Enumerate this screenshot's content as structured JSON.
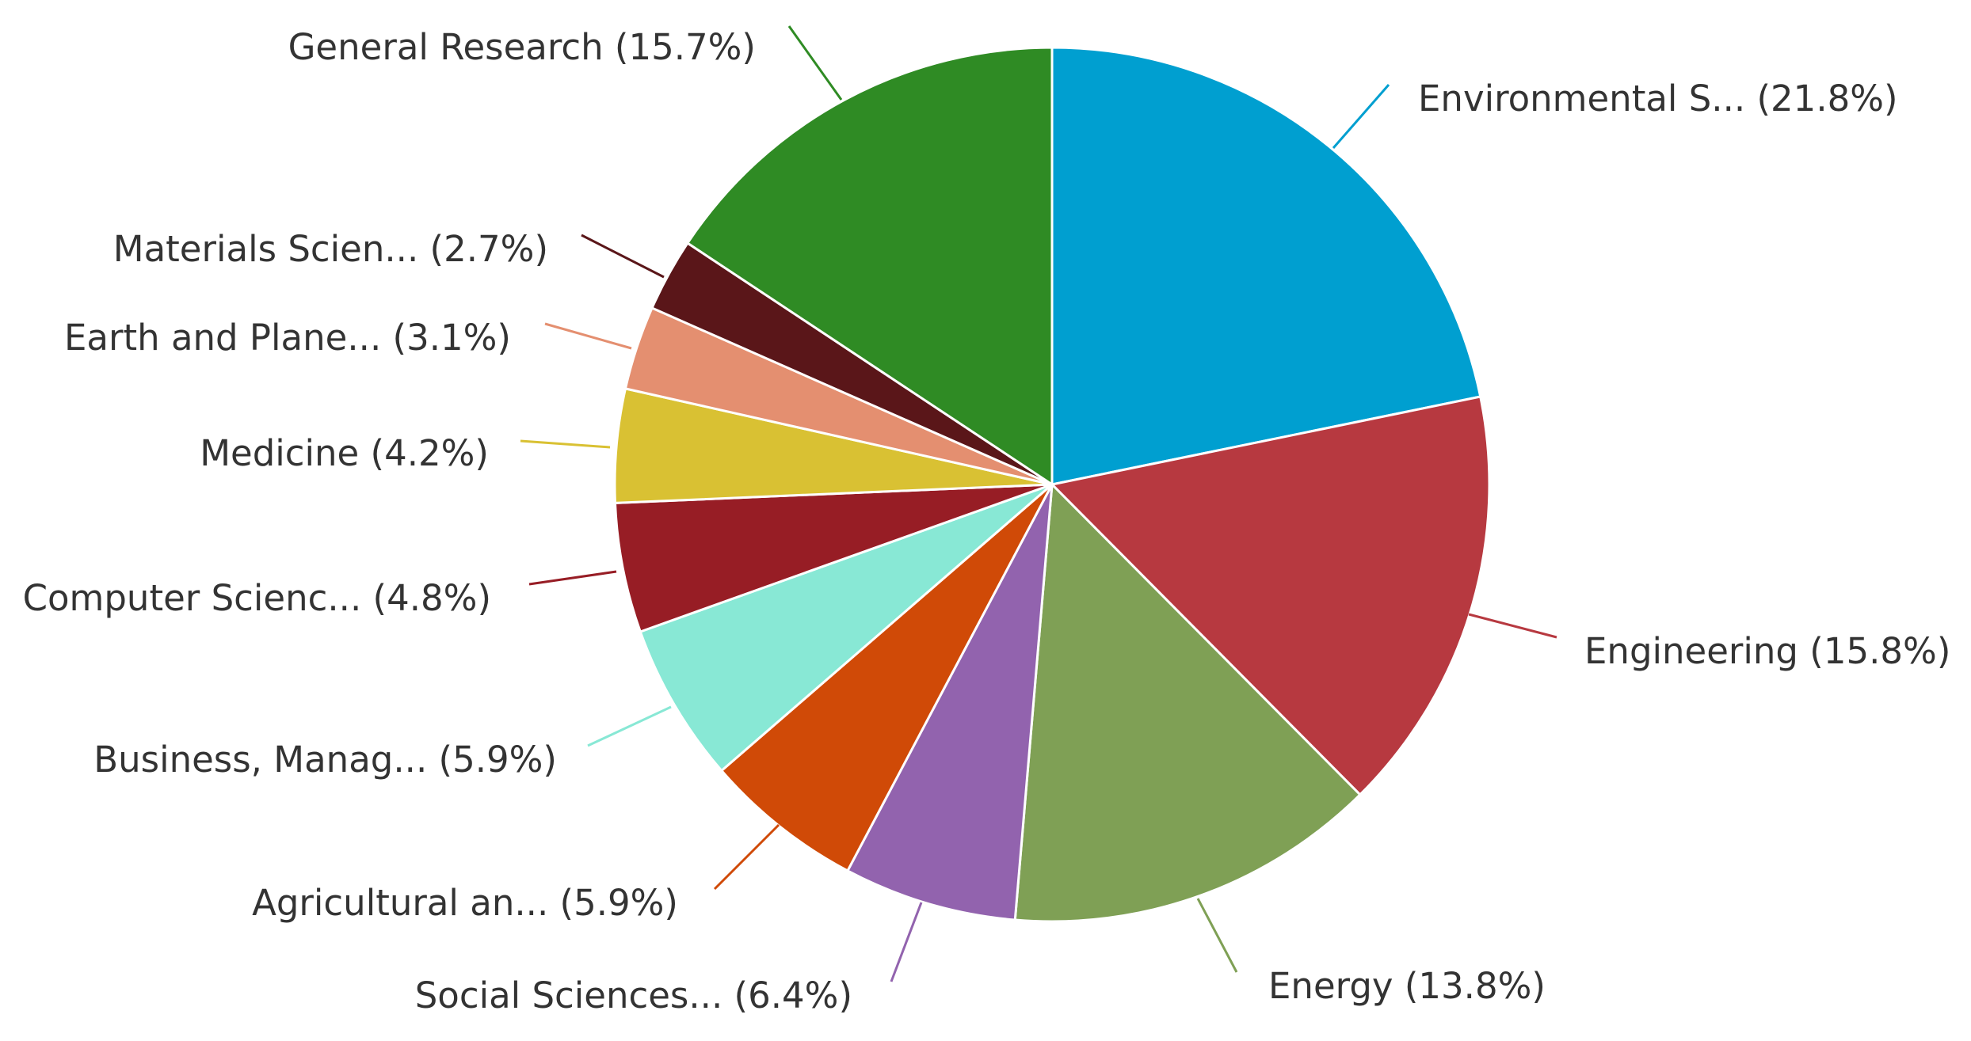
{
  "chart_data": {
    "type": "pie",
    "slices": [
      {
        "label": "Environmental S... (21.8%)",
        "value": 21.8,
        "color": "#009fd0"
      },
      {
        "label": "Engineering (15.8%)",
        "value": 15.8,
        "color": "#b73940"
      },
      {
        "label": "Energy (13.8%)",
        "value": 13.8,
        "color": "#7fa055"
      },
      {
        "label": "Social Sciences... (6.4%)",
        "value": 6.4,
        "color": "#9263ae"
      },
      {
        "label": "Agricultural an... (5.9%)",
        "value": 5.9,
        "color": "#d04a07"
      },
      {
        "label": "Business, Manag... (5.9%)",
        "value": 5.9,
        "color": "#88e8d5"
      },
      {
        "label": "Computer Scienc... (4.8%)",
        "value": 4.8,
        "color": "#971d25"
      },
      {
        "label": "Medicine (4.2%)",
        "value": 4.2,
        "color": "#d9c133"
      },
      {
        "label": "Earth and Plane... (3.1%)",
        "value": 3.1,
        "color": "#e48f70"
      },
      {
        "label": "Materials Scien... (2.7%)",
        "value": 2.7,
        "color": "#5a1619"
      },
      {
        "label": "General Research (15.7%)",
        "value": 15.7,
        "color": "#2f8b24"
      }
    ],
    "start_angle": "12 o'clock",
    "direction": "clockwise",
    "legend": "none"
  }
}
